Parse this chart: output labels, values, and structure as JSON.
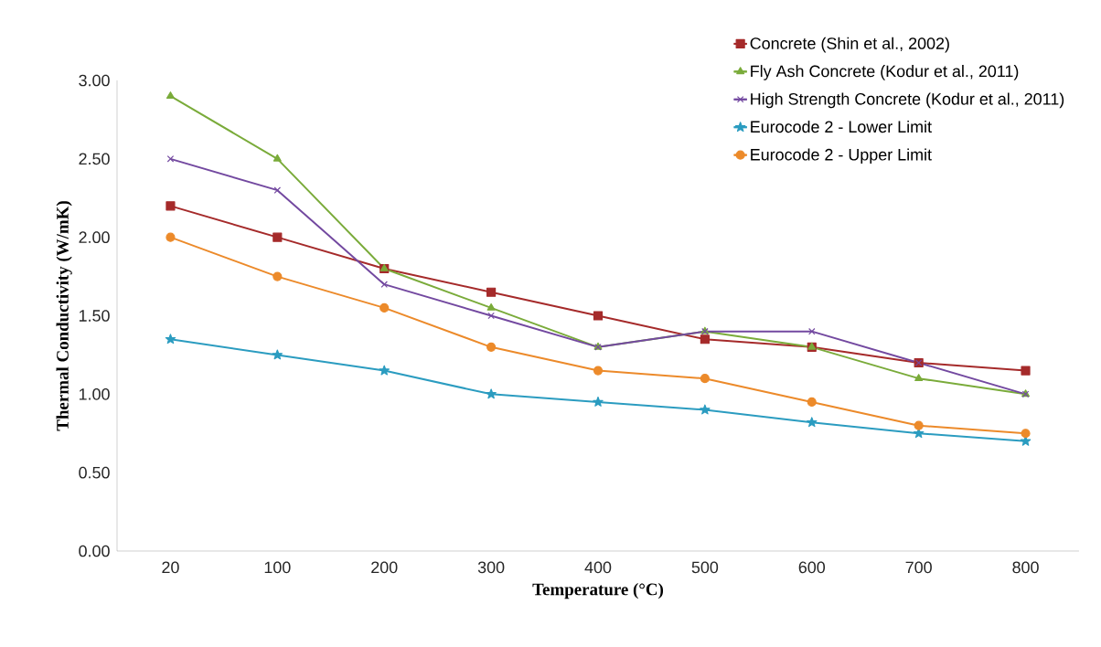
{
  "chart_data": {
    "type": "line",
    "xlabel": "Temperature (°C)",
    "ylabel": "Thermal Conductivity (W/mK)",
    "categories": [
      "20",
      "100",
      "200",
      "300",
      "400",
      "500",
      "600",
      "700",
      "800"
    ],
    "ylim": [
      0,
      3
    ],
    "yticks": [
      {
        "value": 0,
        "label": "0.00"
      },
      {
        "value": 0.5,
        "label": "0.50"
      },
      {
        "value": 1,
        "label": "1.00"
      },
      {
        "value": 1.5,
        "label": "1.50"
      },
      {
        "value": 2,
        "label": "2.00"
      },
      {
        "value": 2.5,
        "label": "2.50"
      },
      {
        "value": 3,
        "label": "3.00"
      }
    ],
    "grid": false,
    "legend": "top right",
    "series": [
      {
        "name": "Concrete (Shin et al., 2002)",
        "color": "#a52a2a",
        "marker": "square",
        "values": [
          2.2,
          2.0,
          1.8,
          1.65,
          1.5,
          1.35,
          1.3,
          1.2,
          1.15
        ]
      },
      {
        "name": "Fly Ash Concrete (Kodur et al., 2011)",
        "color": "#7aab3a",
        "marker": "triangle",
        "values": [
          2.9,
          2.5,
          1.8,
          1.55,
          1.3,
          1.4,
          1.3,
          1.1,
          1.0
        ]
      },
      {
        "name": "High Strength Concrete (Kodur et al., 2011)",
        "color": "#7349a0",
        "marker": "cross",
        "values": [
          2.5,
          2.3,
          1.7,
          1.5,
          1.3,
          1.4,
          1.4,
          1.2,
          1.0
        ]
      },
      {
        "name": "Eurocode 2 - Lower Limit",
        "color": "#2b9cc0",
        "marker": "star",
        "values": [
          1.35,
          1.25,
          1.15,
          1.0,
          0.95,
          0.9,
          0.82,
          0.75,
          0.7
        ]
      },
      {
        "name": "Eurocode 2 - Upper Limit",
        "color": "#ec8a2a",
        "marker": "circle",
        "values": [
          2.0,
          1.75,
          1.55,
          1.3,
          1.15,
          1.1,
          0.95,
          0.8,
          0.75
        ]
      }
    ]
  }
}
